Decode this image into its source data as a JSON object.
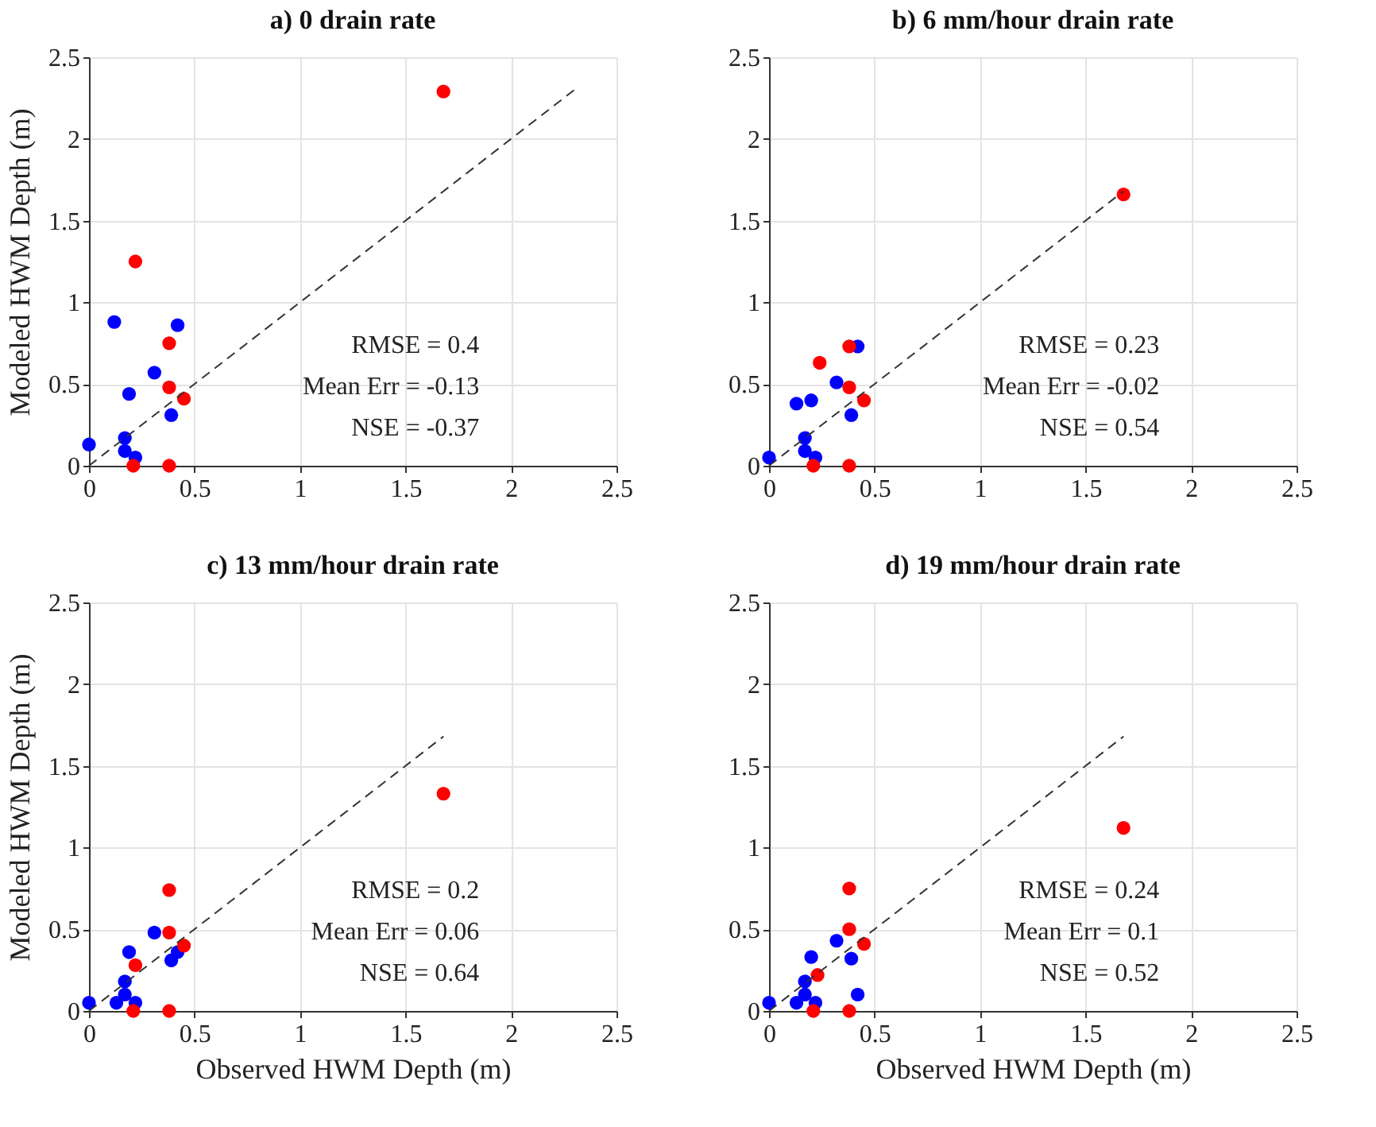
{
  "chart_data": [
    {
      "type": "scatter",
      "title": "a) 0 drain rate",
      "ylabel": "Modeled HWM Depth (m)",
      "xlim": [
        0,
        2.5
      ],
      "ylim": [
        0,
        2.5
      ],
      "xticks": [
        0,
        0.5,
        1,
        1.5,
        2,
        2.5
      ],
      "yticks": [
        0,
        0.5,
        1,
        1.5,
        2,
        2.5
      ],
      "grid": true,
      "annotations": [
        "RMSE = 0.4",
        "Mean Err = -0.13",
        "NSE = -0.37"
      ],
      "series": [
        {
          "marker": "circle",
          "color": "#0000ff",
          "x": [
            0,
            0.12,
            0.42,
            0.31,
            0.19,
            0.39,
            0.17,
            0.17,
            0.22
          ],
          "values": [
            0.13,
            0.88,
            0.86,
            0.57,
            0.44,
            0.31,
            0.17,
            0.09,
            0.05
          ]
        },
        {
          "marker": "circle",
          "color": "#ff0000",
          "x": [
            1.68,
            0.22,
            0.38,
            0.38,
            0.45,
            0.21,
            0.38
          ],
          "values": [
            2.29,
            1.25,
            0.75,
            0.48,
            0.41,
            0,
            0
          ]
        },
        {
          "type": "line",
          "color": "#333333",
          "line_style": "dashed",
          "x": [
            0,
            2.3
          ],
          "values": [
            0,
            2.3
          ]
        }
      ]
    },
    {
      "type": "scatter",
      "title": "b) 6 mm/hour drain rate",
      "xlim": [
        0,
        2.5
      ],
      "ylim": [
        0,
        2.5
      ],
      "xticks": [
        0,
        0.5,
        1,
        1.5,
        2,
        2.5
      ],
      "yticks": [
        0,
        0.5,
        1,
        1.5,
        2,
        2.5
      ],
      "grid": true,
      "annotations": [
        "RMSE = 0.23",
        "Mean Err = -0.02",
        "NSE = 0.54"
      ],
      "series": [
        {
          "marker": "circle",
          "color": "#0000ff",
          "x": [
            0,
            0.13,
            0.2,
            0.32,
            0.42,
            0.39,
            0.17,
            0.17,
            0.22
          ],
          "values": [
            0.05,
            0.38,
            0.4,
            0.51,
            0.73,
            0.31,
            0.17,
            0.09,
            0.05
          ]
        },
        {
          "marker": "circle",
          "color": "#ff0000",
          "x": [
            1.68,
            0.24,
            0.38,
            0.38,
            0.45,
            0.21,
            0.38
          ],
          "values": [
            1.66,
            0.63,
            0.73,
            0.48,
            0.4,
            0,
            0
          ]
        },
        {
          "type": "line",
          "color": "#333333",
          "line_style": "dashed",
          "x": [
            0,
            1.68
          ],
          "values": [
            0,
            1.68
          ]
        }
      ]
    },
    {
      "type": "scatter",
      "title": "c) 13 mm/hour drain rate",
      "xlabel": "Observed HWM Depth (m)",
      "ylabel": "Modeled HWM Depth (m)",
      "xlim": [
        0,
        2.5
      ],
      "ylim": [
        0,
        2.5
      ],
      "xticks": [
        0,
        0.5,
        1,
        1.5,
        2,
        2.5
      ],
      "yticks": [
        0,
        0.5,
        1,
        1.5,
        2,
        2.5
      ],
      "grid": true,
      "annotations": [
        "RMSE = 0.2",
        "Mean Err = 0.06",
        "NSE = 0.64"
      ],
      "series": [
        {
          "marker": "circle",
          "color": "#0000ff",
          "x": [
            0,
            0.13,
            0.19,
            0.31,
            0.39,
            0.42,
            0.17,
            0.17,
            0.22
          ],
          "values": [
            0.05,
            0.05,
            0.36,
            0.48,
            0.31,
            0.36,
            0.18,
            0.1,
            0.05
          ]
        },
        {
          "marker": "circle",
          "color": "#ff0000",
          "x": [
            1.68,
            0.38,
            0.38,
            0.45,
            0.22,
            0.21,
            0.38
          ],
          "values": [
            1.33,
            0.74,
            0.48,
            0.4,
            0.28,
            0,
            0
          ]
        },
        {
          "type": "line",
          "color": "#333333",
          "line_style": "dashed",
          "x": [
            0,
            1.68
          ],
          "values": [
            0,
            1.68
          ]
        }
      ]
    },
    {
      "type": "scatter",
      "title": "d) 19 mm/hour drain rate",
      "xlabel": "Observed HWM Depth (m)",
      "xlim": [
        0,
        2.5
      ],
      "ylim": [
        0,
        2.5
      ],
      "xticks": [
        0,
        0.5,
        1,
        1.5,
        2,
        2.5
      ],
      "yticks": [
        0,
        0.5,
        1,
        1.5,
        2,
        2.5
      ],
      "grid": true,
      "annotations": [
        "RMSE = 0.24",
        "Mean Err = 0.1",
        "NSE = 0.52"
      ],
      "series": [
        {
          "marker": "circle",
          "color": "#0000ff",
          "x": [
            0,
            0.13,
            0.2,
            0.32,
            0.39,
            0.42,
            0.17,
            0.17,
            0.22
          ],
          "values": [
            0.05,
            0.05,
            0.33,
            0.43,
            0.32,
            0.1,
            0.18,
            0.1,
            0.05
          ]
        },
        {
          "marker": "circle",
          "color": "#ff0000",
          "x": [
            1.68,
            0.38,
            0.38,
            0.45,
            0.23,
            0.21,
            0.38
          ],
          "values": [
            1.12,
            0.75,
            0.5,
            0.41,
            0.22,
            0,
            0
          ]
        },
        {
          "type": "line",
          "color": "#333333",
          "line_style": "dashed",
          "x": [
            0,
            1.68
          ],
          "values": [
            0,
            1.68
          ]
        }
      ]
    }
  ]
}
